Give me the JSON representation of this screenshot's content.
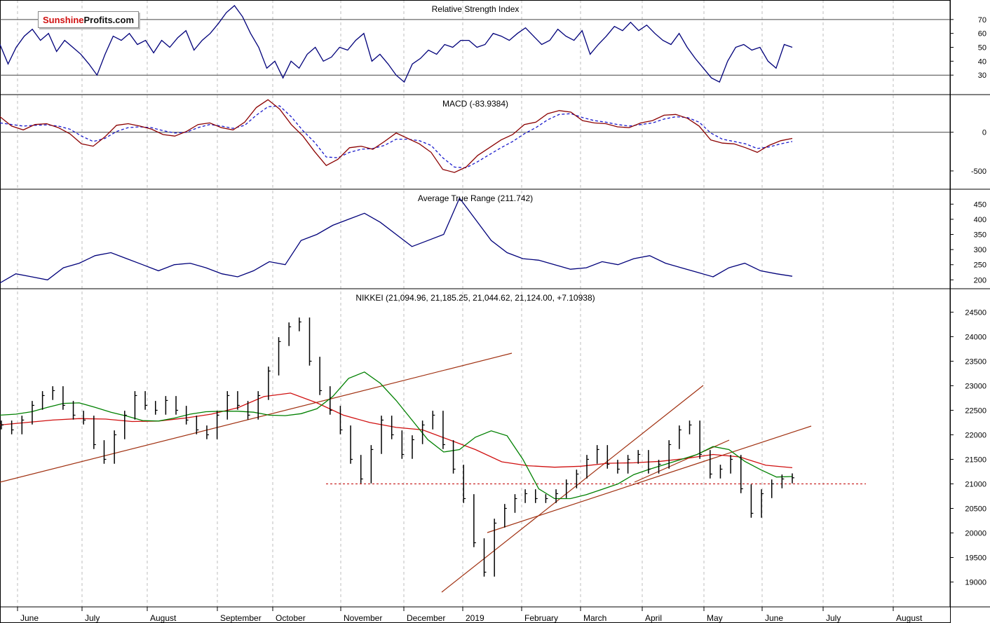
{
  "logo": {
    "part1": "Sunshine",
    "part2": "Profits.com"
  },
  "colors": {
    "rsi": "#00007a",
    "macd": "#8b0000",
    "signal": "#1a1acc",
    "atr": "#00007a",
    "ma_short": "#008000",
    "ma_long": "#d01010",
    "trend": "#a03010",
    "support": "#c00000",
    "bars": "#000000",
    "grid": "#bdbdbd",
    "border": "#000000"
  },
  "chart_data": [
    {
      "type": "line",
      "title": "Relative Strength Index",
      "yticks": [
        30,
        40,
        50,
        60,
        70
      ],
      "ylim": [
        18,
        82
      ],
      "reference_lines": [
        30,
        70
      ],
      "series": [
        {
          "values": [
            52,
            38,
            50,
            58,
            63,
            55,
            60,
            47,
            55,
            50,
            45,
            38,
            30,
            45,
            58,
            55,
            60,
            52,
            55,
            46,
            55,
            50,
            57,
            62,
            48,
            55,
            60,
            67,
            75,
            80,
            72,
            60,
            50,
            35,
            40,
            28,
            40,
            35,
            45,
            50,
            40,
            43,
            50,
            48,
            55,
            60,
            40,
            45,
            38,
            30,
            25,
            38,
            42,
            48,
            45,
            52,
            50,
            55,
            55,
            50,
            52,
            60,
            58,
            55,
            60,
            64,
            58,
            52,
            55,
            63,
            58,
            55,
            62,
            45,
            52,
            58,
            65,
            62,
            68,
            62,
            66,
            60,
            55,
            52,
            60,
            50,
            42,
            35,
            28,
            25,
            40,
            50,
            52,
            48,
            50,
            40,
            35,
            52,
            50
          ]
        }
      ]
    },
    {
      "type": "line",
      "title": "MACD (-83.9384)",
      "yticks": [
        0,
        -500
      ],
      "ylim": [
        -700,
        450
      ],
      "reference_lines": [
        0
      ],
      "series": [
        {
          "name": "MACD",
          "values": [
            200,
            80,
            30,
            100,
            110,
            60,
            -20,
            -150,
            -180,
            -60,
            90,
            110,
            80,
            40,
            -30,
            -50,
            10,
            100,
            120,
            60,
            30,
            130,
            320,
            420,
            300,
            100,
            -50,
            -250,
            -430,
            -350,
            -200,
            -180,
            -220,
            -120,
            -10,
            -80,
            -150,
            -260,
            -480,
            -520,
            -450,
            -300,
            -200,
            -100,
            -30,
            100,
            130,
            240,
            280,
            260,
            150,
            120,
            110,
            70,
            60,
            120,
            150,
            220,
            230,
            180,
            80,
            -100,
            -140,
            -150,
            -200,
            -260,
            -170,
            -110,
            -80
          ]
        },
        {
          "name": "Signal",
          "values": [
            120,
            100,
            80,
            90,
            95,
            80,
            40,
            -50,
            -120,
            -80,
            10,
            60,
            70,
            60,
            20,
            -10,
            0,
            60,
            100,
            80,
            50,
            90,
            220,
            330,
            340,
            200,
            20,
            -130,
            -320,
            -330,
            -260,
            -220,
            -210,
            -170,
            -90,
            -90,
            -110,
            -170,
            -330,
            -450,
            -460,
            -380,
            -290,
            -200,
            -120,
            -20,
            60,
            160,
            230,
            240,
            190,
            150,
            130,
            100,
            80,
            100,
            120,
            170,
            200,
            190,
            130,
            -10,
            -90,
            -120,
            -150,
            -210,
            -190,
            -150,
            -120
          ]
        }
      ]
    },
    {
      "type": "line",
      "title": "Average True Range (211.742)",
      "yticks": [
        200,
        250,
        300,
        350,
        400,
        450
      ],
      "ylim": [
        180,
        490
      ],
      "series": [
        {
          "values": [
            190,
            220,
            210,
            200,
            240,
            255,
            280,
            290,
            270,
            250,
            230,
            250,
            255,
            240,
            220,
            210,
            230,
            260,
            250,
            330,
            350,
            380,
            400,
            420,
            390,
            350,
            310,
            330,
            350,
            470,
            400,
            330,
            290,
            270,
            265,
            250,
            235,
            240,
            260,
            250,
            270,
            280,
            255,
            240,
            225,
            210,
            240,
            255,
            230,
            220,
            212
          ]
        }
      ]
    },
    {
      "type": "bar",
      "title": "NIKKEI (21,094.96, 21,185.25, 21,044.62, 21,124.00, +7.10938)",
      "yticks": [
        19000,
        19500,
        20000,
        20500,
        21000,
        21500,
        22000,
        22500,
        23000,
        23500,
        24000,
        24500
      ],
      "ylim": [
        18550,
        24920
      ],
      "support_level": 21000,
      "closes": [
        22200,
        22100,
        22300,
        22600,
        22800,
        22900,
        22600,
        22400,
        22300,
        21800,
        21500,
        22000,
        22400,
        22800,
        22600,
        22500,
        22700,
        22500,
        22300,
        22100,
        22000,
        22400,
        22800,
        22600,
        22400,
        22800,
        23300,
        23900,
        24200,
        24300,
        23500,
        22900,
        22500,
        22100,
        21500,
        21100,
        21700,
        22300,
        22000,
        21600,
        21900,
        22200,
        22400,
        21800,
        21300,
        20700,
        19800,
        19200,
        20200,
        20500,
        20700,
        20800,
        20700,
        20700,
        20800,
        21000,
        21200,
        21500,
        21700,
        21400,
        21300,
        21500,
        21600,
        21300,
        21400,
        21800,
        22100,
        22200,
        21600,
        21200,
        21300,
        21500,
        20900,
        20400,
        20800,
        21000,
        21100,
        21124
      ],
      "ma_short": [
        22400,
        22420,
        22470,
        22560,
        22640,
        22650,
        22560,
        22460,
        22380,
        22290,
        22280,
        22340,
        22420,
        22470,
        22480,
        22480,
        22460,
        22400,
        22390,
        22430,
        22530,
        22780,
        23150,
        23280,
        23050,
        22700,
        22300,
        21900,
        21650,
        21700,
        21950,
        22080,
        21980,
        21500,
        20900,
        20700,
        20700,
        20780,
        20890,
        21000,
        21190,
        21300,
        21400,
        21500,
        21600,
        21760,
        21700,
        21460,
        21290,
        21140,
        21150
      ],
      "ma_long": [
        22200,
        22250,
        22300,
        22330,
        22320,
        22270,
        22280,
        22340,
        22420,
        22550,
        22780,
        22850,
        22650,
        22400,
        22250,
        22150,
        22100,
        21900,
        21700,
        21450,
        21370,
        21340,
        21360,
        21420,
        21430,
        21460,
        21520,
        21600,
        21550,
        21380,
        21330
      ]
    }
  ],
  "x_axis_months": [
    "June",
    "July",
    "August",
    "September",
    "October",
    "November",
    "December",
    "2019",
    "February",
    "March",
    "April",
    "May",
    "June",
    "July",
    "August"
  ]
}
